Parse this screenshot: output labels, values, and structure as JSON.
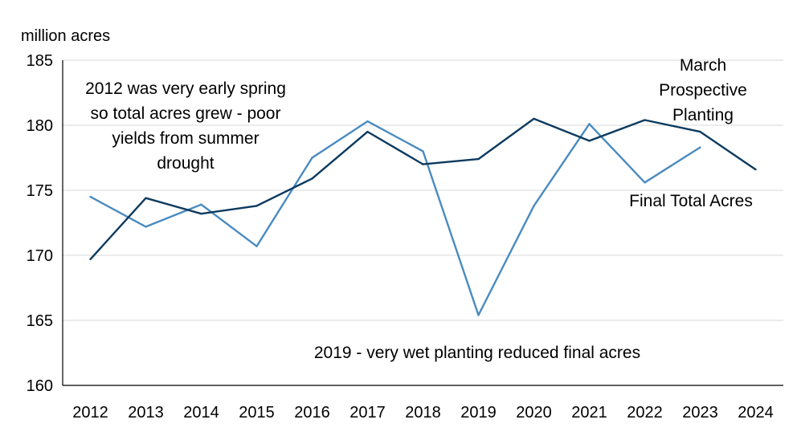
{
  "chart_data": {
    "type": "line",
    "title": "",
    "ylabel": "million acres",
    "xlabel": "",
    "categories": [
      "2012",
      "2013",
      "2014",
      "2015",
      "2016",
      "2017",
      "2018",
      "2019",
      "2020",
      "2021",
      "2022",
      "2023",
      "2024"
    ],
    "ylim": [
      160,
      185
    ],
    "yticks": [
      160,
      165,
      170,
      175,
      180,
      185
    ],
    "grid": true,
    "series": [
      {
        "name": "March Prospective Planting",
        "color": "#0d3a5f",
        "values": [
          169.7,
          174.4,
          173.2,
          173.8,
          175.9,
          179.5,
          177.0,
          177.4,
          180.5,
          178.8,
          180.4,
          179.5,
          176.6
        ]
      },
      {
        "name": "Final Total Acres",
        "color": "#4a8bbf",
        "values": [
          174.5,
          172.2,
          173.9,
          170.7,
          177.5,
          180.3,
          178.0,
          165.4,
          173.8,
          180.1,
          175.6,
          178.3,
          null
        ]
      }
    ],
    "label_lines": {
      "march": [
        "March",
        "Prospective",
        "Planting"
      ],
      "final": [
        "Final Total Acres"
      ]
    },
    "annotations": [
      {
        "lines": [
          "2012 was very early spring",
          "so total acres grew  - poor",
          "yields from summer",
          "drought"
        ]
      },
      {
        "lines": [
          "2019 - very wet planting reduced final acres"
        ]
      }
    ]
  }
}
